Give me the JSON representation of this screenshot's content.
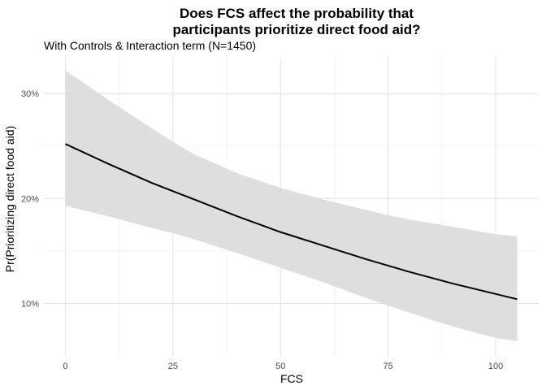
{
  "chart_data": {
    "type": "line",
    "title_line1": "Does FCS affect the probability that",
    "title_line2": "participants prioritize direct food aid?",
    "subtitle": "With Controls & Interaction term (N=1450)",
    "xlabel": "FCS",
    "ylabel": "Pr(Prioritizing direct food aid)",
    "xlim": [
      -5,
      110
    ],
    "ylim": [
      0.05,
      0.335
    ],
    "x_ticks": [
      0,
      25,
      50,
      75,
      100
    ],
    "x_tick_labels": [
      "0",
      "25",
      "50",
      "75",
      "100"
    ],
    "x_minor_ticks": [
      12.5,
      37.5,
      62.5,
      87.5
    ],
    "y_ticks": [
      0.1,
      0.2,
      0.3
    ],
    "y_tick_labels": [
      "10%",
      "20%",
      "30%"
    ],
    "y_minor_ticks": [
      0.15,
      0.25
    ],
    "grid": true,
    "series": [
      {
        "x": [
          0,
          10,
          20,
          25,
          30,
          40,
          50,
          60,
          70,
          75,
          80,
          90,
          100,
          105
        ],
        "y": [
          0.252,
          0.233,
          0.215,
          0.207,
          0.199,
          0.183,
          0.168,
          0.155,
          0.142,
          0.136,
          0.13,
          0.119,
          0.109,
          0.104
        ],
        "ci_lower": [
          0.193,
          0.183,
          0.172,
          0.167,
          0.161,
          0.148,
          0.134,
          0.12,
          0.105,
          0.098,
          0.091,
          0.078,
          0.067,
          0.064
        ],
        "ci_upper": [
          0.322,
          0.294,
          0.267,
          0.254,
          0.242,
          0.224,
          0.21,
          0.199,
          0.189,
          0.184,
          0.18,
          0.173,
          0.166,
          0.164
        ]
      }
    ],
    "colors": {
      "line": "#000000",
      "ribbon": "#dadada",
      "grid_major": "#e4e4e4",
      "grid_minor": "#f0f0f0"
    }
  }
}
